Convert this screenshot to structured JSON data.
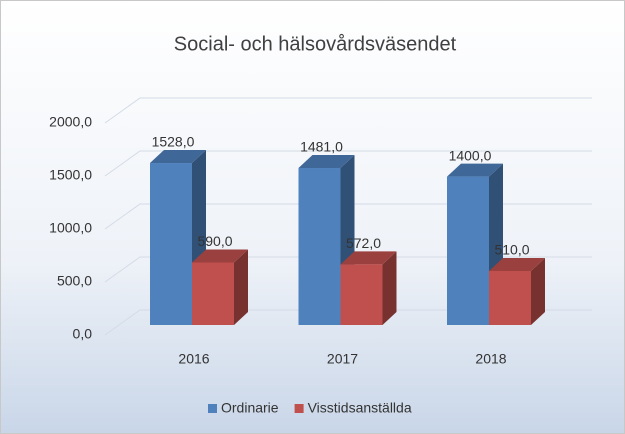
{
  "chart_data": {
    "type": "bar3d",
    "title": "Social- och hälsovårdsväsendet",
    "categories": [
      "2016",
      "2017",
      "2018"
    ],
    "series": [
      {
        "name": "Ordinarie",
        "color": "#4f81bd",
        "values": [
          1528,
          1481,
          1400
        ],
        "value_labels": [
          "1528,0",
          "1481,0",
          "1400,0"
        ]
      },
      {
        "name": "Visstidsanställda",
        "color": "#c0504d",
        "values": [
          590,
          572,
          510
        ],
        "value_labels": [
          "590,0",
          "572,0",
          "510,0"
        ]
      }
    ],
    "ylim": [
      0,
      2000
    ],
    "yticks": [
      {
        "value": 0,
        "label": "0,0"
      },
      {
        "value": 500,
        "label": "500,0"
      },
      {
        "value": 1000,
        "label": "1000,0"
      },
      {
        "value": 1500,
        "label": "1500,0"
      },
      {
        "value": 2000,
        "label": "2000,0"
      }
    ],
    "grid": true,
    "legend": "bottom"
  }
}
